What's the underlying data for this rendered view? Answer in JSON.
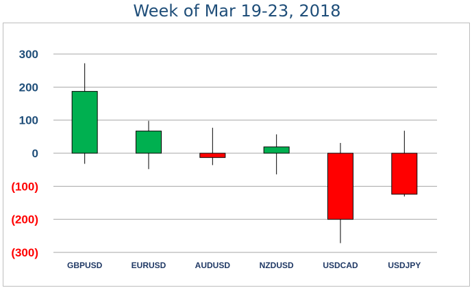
{
  "chart_data": {
    "type": "candlestick",
    "title": "Week of Mar 19-23, 2018",
    "categories": [
      "GBPUSD",
      "EURUSD",
      "AUDUSD",
      "NZDUSD",
      "USDCAD",
      "USDJPY"
    ],
    "series": [
      {
        "open": 0,
        "close": 187,
        "high": 272,
        "low": -32
      },
      {
        "open": 0,
        "close": 67,
        "high": 98,
        "low": -48
      },
      {
        "open": 0,
        "close": -13,
        "high": 77,
        "low": -36
      },
      {
        "open": 0,
        "close": 19,
        "high": 57,
        "low": -64
      },
      {
        "open": 0,
        "close": -200,
        "high": 31,
        "low": -272
      },
      {
        "open": 0,
        "close": -124,
        "high": 68,
        "low": -131
      }
    ],
    "yticks": [
      "300",
      "200",
      "100",
      "0",
      "(100)",
      "(200)",
      "(300)"
    ],
    "ytick_values": [
      300,
      200,
      100,
      0,
      -100,
      -200,
      -300
    ],
    "ylim": [
      -300,
      300
    ],
    "grid": true,
    "colors": {
      "up": "#00b050",
      "down": "#ff0000",
      "positive_tick": "#1f4e79",
      "negative_tick": "#ff0000",
      "grid": "#a6a6a6"
    }
  }
}
